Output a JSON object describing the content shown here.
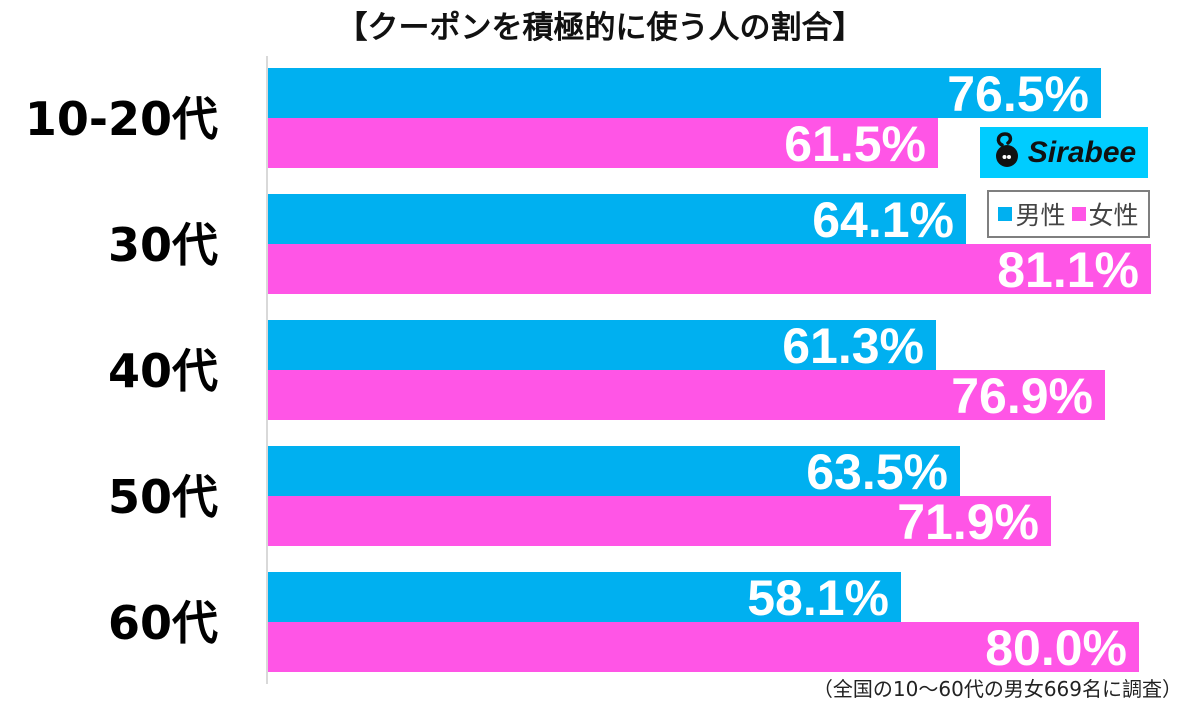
{
  "title": "【クーポンを積極的に使う人の割合】",
  "legend": {
    "male_label": "男性",
    "female_label": "女性",
    "male_color": "#00b0f0",
    "female_color": "#ff55e6"
  },
  "logo": {
    "text": "Sirabee",
    "icon": "sirabee-mascot-icon",
    "bg_color": "#00ccff"
  },
  "footnote": "（全国の10〜60代の男女669名に調査）",
  "groups": [
    {
      "label": "10-20代",
      "male": "76.5%",
      "female": "61.5%"
    },
    {
      "label": "30代",
      "male": "64.1%",
      "female": "81.1%"
    },
    {
      "label": "40代",
      "male": "61.3%",
      "female": "76.9%"
    },
    {
      "label": "50代",
      "male": "63.5%",
      "female": "71.9%"
    },
    {
      "label": "60代",
      "male": "58.1%",
      "female": "80.0%"
    }
  ],
  "chart_data": {
    "type": "bar",
    "orientation": "horizontal",
    "title": "【クーポンを積極的に使う人の割合】",
    "categories": [
      "10-20代",
      "30代",
      "40代",
      "50代",
      "60代"
    ],
    "series": [
      {
        "name": "男性",
        "color": "#00b0f0",
        "values": [
          76.5,
          64.1,
          61.3,
          63.5,
          58.1
        ]
      },
      {
        "name": "女性",
        "color": "#ff55e6",
        "values": [
          61.5,
          81.1,
          76.9,
          71.9,
          80.0
        ]
      }
    ],
    "xlabel": "",
    "ylabel": "",
    "unit": "%",
    "xlim": [
      0,
      100
    ],
    "grid": false,
    "data_labels": true,
    "legend_position": "upper right (inside)",
    "annotation": "（全国の10〜60代の男女669名に調査）"
  }
}
